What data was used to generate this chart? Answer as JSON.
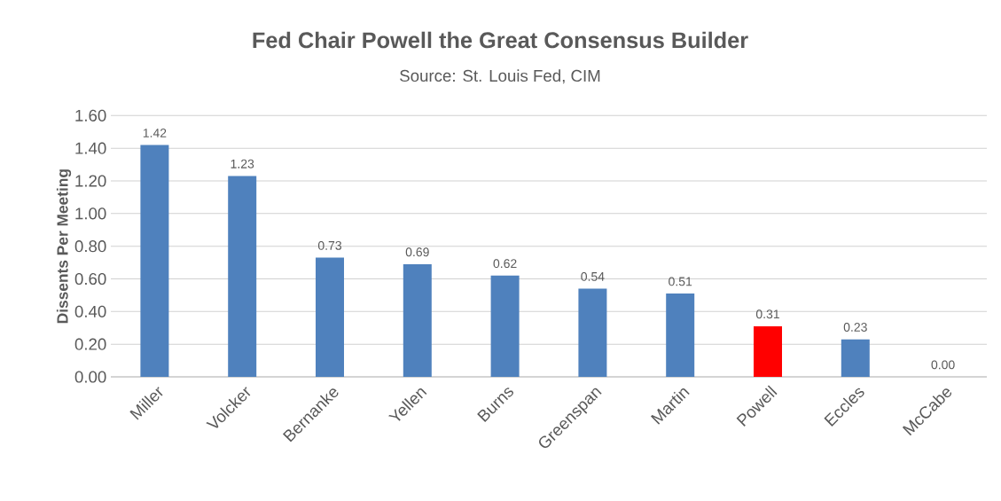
{
  "chart_data": {
    "type": "bar",
    "title": "Fed Chair Powell the Great Consensus Builder",
    "subtitle": "Source: St. Louis Fed, CIM",
    "ylabel": "Dissents Per Meeting",
    "categories": [
      "Miller",
      "Volcker",
      "Bernanke",
      "Yellen",
      "Burns",
      "Greenspan",
      "Martin",
      "Powell",
      "Eccles",
      "McCabe"
    ],
    "values": [
      1.42,
      1.23,
      0.73,
      0.69,
      0.62,
      0.54,
      0.51,
      0.31,
      0.23,
      0.0
    ],
    "value_labels": [
      "1.42",
      "1.23",
      "0.73",
      "0.69",
      "0.62",
      "0.54",
      "0.51",
      "0.31",
      "0.23",
      "0.00"
    ],
    "colors": [
      "#4f81bd",
      "#4f81bd",
      "#4f81bd",
      "#4f81bd",
      "#4f81bd",
      "#4f81bd",
      "#4f81bd",
      "#ff0000",
      "#4f81bd",
      "#4f81bd"
    ],
    "ylim": [
      0,
      1.6
    ],
    "yticks": [
      {
        "value": 0,
        "label": "0.00"
      },
      {
        "value": 0.2,
        "label": "0.20"
      },
      {
        "value": 0.4,
        "label": "0.40"
      },
      {
        "value": 0.6,
        "label": "0.60"
      },
      {
        "value": 0.8,
        "label": "0.80"
      },
      {
        "value": 1.0,
        "label": "1.00"
      },
      {
        "value": 1.2,
        "label": "1.20"
      },
      {
        "value": 1.4,
        "label": "1.40"
      },
      {
        "value": 1.6,
        "label": "1.60"
      }
    ],
    "grid": "y"
  }
}
